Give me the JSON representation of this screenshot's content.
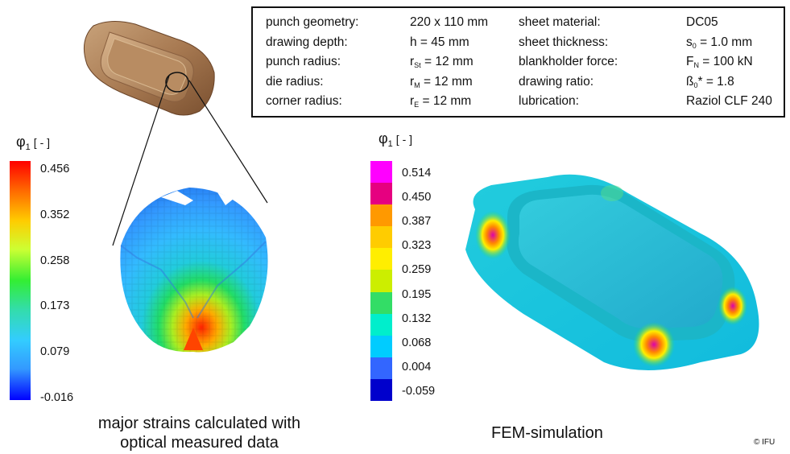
{
  "parameters": {
    "rows": [
      {
        "label": "punch geometry:",
        "value": "220 x 110 mm",
        "label2": "sheet material:",
        "value2": "DC05"
      },
      {
        "label": "drawing depth:",
        "value": "h  = 45 mm",
        "label2": "sheet thickness:",
        "value2_pre": "s",
        "value2_sub": "0",
        "value2_post": " = 1.0 mm"
      },
      {
        "label": "punch radius:",
        "value_pre": "r",
        "value_sub": "St",
        "value_post": " = 12 mm",
        "label2": "blankholder force:",
        "value2_pre": "F",
        "value2_sub": "N",
        "value2_post": " = 100 kN"
      },
      {
        "label": "die radius:",
        "value_pre": "r",
        "value_sub": "M",
        "value_post": " = 12 mm",
        "label2": "drawing ratio:",
        "value2_pre": "ß",
        "value2_sub": "0",
        "value2_post": "* = 1.8"
      },
      {
        "label": "corner radius:",
        "value_pre": "r",
        "value_sub": "E",
        "value_post": "  = 12 mm",
        "label2": "lubrication:",
        "value2": "Raziol CLF 240"
      }
    ]
  },
  "legend_left": {
    "symbol": "φ",
    "subscript": "1",
    "unit": "[ - ]",
    "ticks": [
      "0.456",
      "0.352",
      "0.258",
      "0.173",
      "0.079",
      "-0.016"
    ]
  },
  "legend_right": {
    "symbol": "φ",
    "subscript": "1",
    "unit": "[ - ]",
    "ticks": [
      "0.514",
      "0.450",
      "0.387",
      "0.323",
      "0.259",
      "0.195",
      "0.132",
      "0.068",
      "0.004",
      "-0.059"
    ],
    "colors": [
      "#ff00ff",
      "#e60080",
      "#ff9900",
      "#ffcc00",
      "#ffee00",
      "#ccee00",
      "#33dd66",
      "#00eecc",
      "#00ccff",
      "#3366ff",
      "#0000cc"
    ]
  },
  "captions": {
    "left_line1": "major strains calculated with",
    "left_line2": "optical measured data",
    "right": "FEM-simulation"
  },
  "copyright": "© IFU"
}
